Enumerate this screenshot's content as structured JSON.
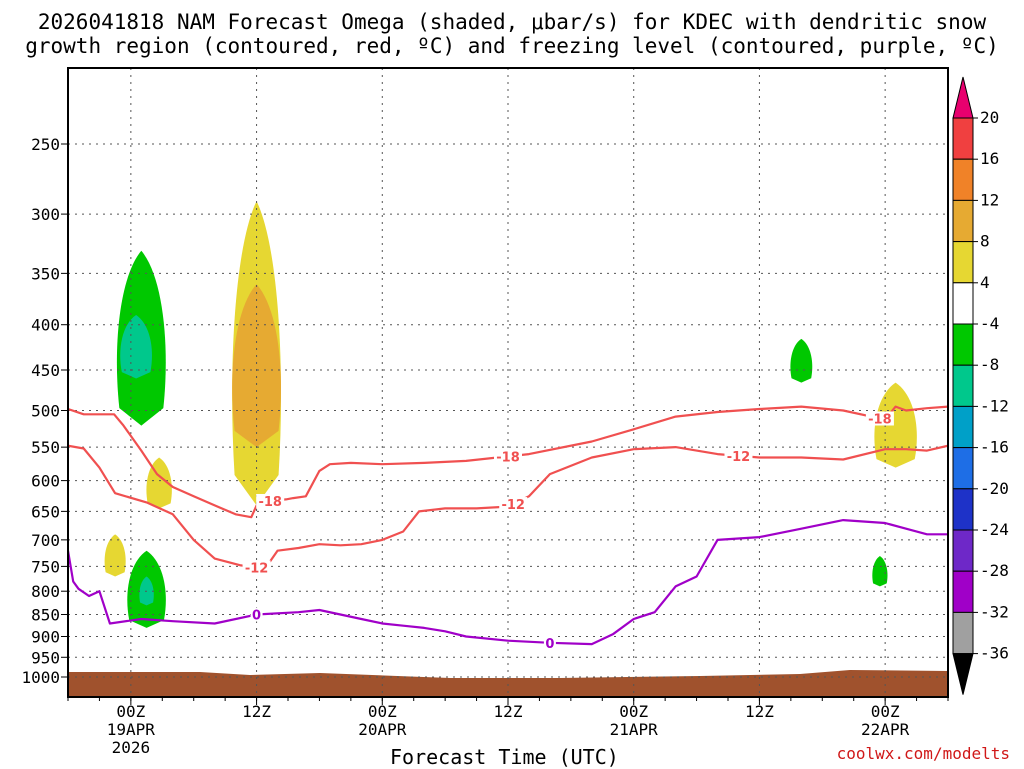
{
  "title_line1": "2026041818 NAM Forecast Omega (shaded, μbar/s) for KDEC with dendritic snow",
  "title_line2": "growth region (contoured, red, ºC) and freezing level (contoured, purple, ºC)",
  "xlabel": "Forecast Time (UTC)",
  "credit": "coolwx.com/modelts",
  "chart_data": {
    "type": "heatmap",
    "title": "2026041818 NAM Forecast Omega (shaded, μbar/s) for KDEC with dendritic snow growth region (contoured, red, ºC) and freezing level (contoured, purple, ºC)",
    "xlabel": "Forecast Time (UTC)",
    "ylabel": "",
    "x_range_hours": [
      -6,
      78
    ],
    "y_range_hPa": [
      1050,
      200
    ],
    "y_ticks": [
      250,
      300,
      350,
      400,
      450,
      500,
      550,
      600,
      650,
      700,
      750,
      800,
      850,
      900,
      950,
      1000
    ],
    "x_ticks": [
      {
        "hour": 0,
        "label": "00Z",
        "sub1": "19APR",
        "sub2": "2026"
      },
      {
        "hour": 12,
        "label": "12Z",
        "sub1": "",
        "sub2": ""
      },
      {
        "hour": 24,
        "label": "00Z",
        "sub1": "20APR",
        "sub2": ""
      },
      {
        "hour": 36,
        "label": "12Z",
        "sub1": "",
        "sub2": ""
      },
      {
        "hour": 48,
        "label": "00Z",
        "sub1": "21APR",
        "sub2": ""
      },
      {
        "hour": 60,
        "label": "12Z",
        "sub1": "",
        "sub2": ""
      },
      {
        "hour": 72,
        "label": "00Z",
        "sub1": "22APR",
        "sub2": ""
      }
    ],
    "grid": true,
    "colorbar": {
      "labels": [
        "20",
        "16",
        "12",
        "8",
        "4",
        "-4",
        "-8",
        "-12",
        "-16",
        "-20",
        "-24",
        "-28",
        "-32",
        "-36"
      ],
      "colors": [
        "#e8006e",
        "#f04040",
        "#f08228",
        "#e6aa32",
        "#e6d732",
        "#ffffff",
        "#00c800",
        "#00c88c",
        "#00a0c8",
        "#1e6ee6",
        "#1e32c8",
        "#6e28c8",
        "#a000c8",
        "#a0a0a0",
        "#000000"
      ]
    },
    "omega_regions": [
      {
        "value_range": "-4 to -8",
        "color": "#00c800",
        "center_hour": 1,
        "top_hPa": 330,
        "bottom_hPa": 520
      },
      {
        "value_range": "-8 to -12",
        "color": "#00c88c",
        "center_hour": 0.5,
        "top_hPa": 390,
        "bottom_hPa": 460
      },
      {
        "value_range": "4 to 8",
        "color": "#e6d732",
        "center_hour": 12,
        "top_hPa": 290,
        "bottom_hPa": 640
      },
      {
        "value_range": "8 to 12",
        "color": "#e6aa32",
        "center_hour": 12,
        "top_hPa": 360,
        "bottom_hPa": 550
      },
      {
        "value_range": "4 to 8",
        "color": "#e6d732",
        "center_hour": 2.7,
        "top_hPa": 565,
        "bottom_hPa": 645
      },
      {
        "value_range": "4 to 8",
        "color": "#e6d732",
        "center_hour": -1.5,
        "top_hPa": 690,
        "bottom_hPa": 770
      },
      {
        "value_range": "-4 to -8",
        "color": "#00c800",
        "center_hour": 1.5,
        "top_hPa": 720,
        "bottom_hPa": 880
      },
      {
        "value_range": "-8 to -12",
        "color": "#00c88c",
        "center_hour": 1.5,
        "top_hPa": 770,
        "bottom_hPa": 830
      },
      {
        "value_range": "-4 to -8",
        "color": "#00c800",
        "center_hour": 64,
        "top_hPa": 415,
        "bottom_hPa": 465
      },
      {
        "value_range": "-4 to -8",
        "color": "#00c800",
        "center_hour": 71.5,
        "top_hPa": 730,
        "bottom_hPa": 790
      },
      {
        "value_range": "4 to 8",
        "color": "#e6d732",
        "center_hour": 73,
        "top_hPa": 465,
        "bottom_hPa": 580
      }
    ],
    "series": [
      {
        "name": "-18",
        "color": "#f05050",
        "x_hours": [
          -6,
          -4.5,
          -1.6,
          -0.7,
          1,
          2.5,
          4,
          6,
          8,
          10,
          11.5,
          12,
          12.6,
          13.5,
          14.8,
          15.5,
          16.7,
          18,
          19,
          21,
          24,
          28,
          32,
          38,
          44,
          48,
          52,
          56,
          60,
          64,
          68,
          72,
          73,
          74,
          76,
          78
        ],
        "y_hPa": [
          498,
          505,
          505,
          520,
          555,
          590,
          610,
          625,
          640,
          655,
          660,
          640,
          635,
          632,
          630,
          628,
          625,
          585,
          575,
          573,
          575,
          573,
          570,
          560,
          542,
          525,
          508,
          502,
          498,
          495,
          500,
          512,
          495,
          500,
          497,
          495
        ]
      },
      {
        "name": "-12",
        "color": "#f05050",
        "x_hours": [
          -6,
          -4.5,
          -3,
          -1.5,
          1.5,
          4,
          6,
          8,
          10.5,
          12,
          13.3,
          14,
          16,
          18,
          20,
          22,
          24,
          26,
          27.5,
          30,
          33,
          36,
          38,
          40,
          44,
          48,
          52,
          56,
          60,
          64,
          68,
          72,
          74,
          76,
          78
        ],
        "y_hPa": [
          548,
          552,
          580,
          620,
          635,
          655,
          700,
          735,
          748,
          752,
          740,
          720,
          715,
          708,
          710,
          708,
          700,
          685,
          650,
          645,
          645,
          642,
          625,
          590,
          565,
          553,
          550,
          560,
          565,
          565,
          568,
          553,
          553,
          555,
          548
        ]
      },
      {
        "name": "0",
        "color": "#a000c8",
        "x_hours": [
          -6,
          -5.5,
          -5,
          -4,
          -3,
          -2,
          1,
          4,
          8,
          12,
          16,
          18,
          20,
          22,
          24,
          26,
          28,
          30,
          32,
          36,
          40,
          44,
          46,
          48,
          50,
          52,
          54,
          56,
          60,
          64,
          68,
          72,
          74,
          76,
          78
        ],
        "y_hPa": [
          720,
          780,
          795,
          810,
          800,
          870,
          860,
          865,
          870,
          850,
          845,
          840,
          850,
          860,
          870,
          875,
          880,
          888,
          900,
          910,
          915,
          918,
          895,
          860,
          845,
          790,
          770,
          700,
          695,
          680,
          665,
          670,
          680,
          690,
          690
        ]
      }
    ]
  }
}
